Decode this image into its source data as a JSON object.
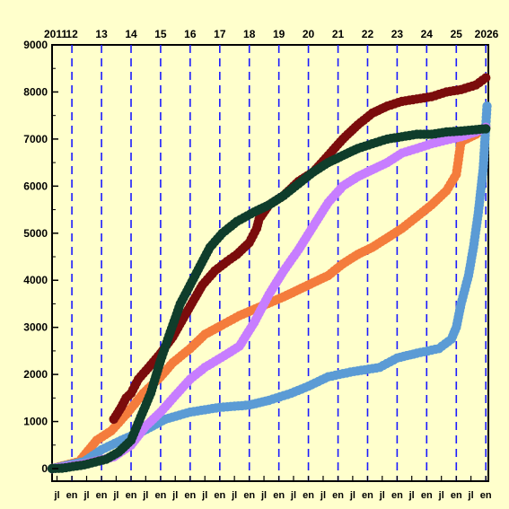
{
  "chart_data": {
    "type": "line",
    "title": "",
    "xlabel": "",
    "ylabel": "",
    "ylim": [
      0,
      9000
    ],
    "xlim": [
      "2011-05-01",
      "2026-02-01"
    ],
    "y_ticks": [
      0,
      1000,
      2000,
      3000,
      4000,
      5000,
      6000,
      7000,
      8000,
      9000
    ],
    "year_labels": [
      {
        "date": "2011-01-01",
        "label": "2011"
      },
      {
        "date": "2012-01-01",
        "label": "12"
      },
      {
        "date": "2013-01-01",
        "label": "13"
      },
      {
        "date": "2014-01-01",
        "label": "14"
      },
      {
        "date": "2015-01-01",
        "label": "15"
      },
      {
        "date": "2016-01-01",
        "label": "16"
      },
      {
        "date": "2017-01-01",
        "label": "17"
      },
      {
        "date": "2018-01-01",
        "label": "18"
      },
      {
        "date": "2019-01-01",
        "label": "19"
      },
      {
        "date": "2020-01-01",
        "label": "20"
      },
      {
        "date": "2021-01-01",
        "label": "21"
      },
      {
        "date": "2022-01-01",
        "label": "22"
      },
      {
        "date": "2023-01-01",
        "label": "23"
      },
      {
        "date": "2024-01-01",
        "label": "24"
      },
      {
        "date": "2025-01-01",
        "label": "25"
      },
      {
        "date": "2026-01-01",
        "label": "2026"
      }
    ],
    "month_ticks": [
      {
        "date": "2011-07-01",
        "label": "jl"
      },
      {
        "date": "2012-01-01",
        "label": "en"
      },
      {
        "date": "2012-07-01",
        "label": "jl"
      },
      {
        "date": "2013-01-01",
        "label": "en"
      },
      {
        "date": "2013-07-01",
        "label": "jl"
      },
      {
        "date": "2014-01-01",
        "label": "en"
      },
      {
        "date": "2014-07-01",
        "label": "jl"
      },
      {
        "date": "2015-01-01",
        "label": "en"
      },
      {
        "date": "2015-07-01",
        "label": "jl"
      },
      {
        "date": "2016-01-01",
        "label": "en"
      },
      {
        "date": "2016-07-01",
        "label": "jl"
      },
      {
        "date": "2017-01-01",
        "label": "en"
      },
      {
        "date": "2017-07-01",
        "label": "jl"
      },
      {
        "date": "2018-01-01",
        "label": "en"
      },
      {
        "date": "2018-07-01",
        "label": "jl"
      },
      {
        "date": "2019-01-01",
        "label": "en"
      },
      {
        "date": "2019-07-01",
        "label": "jl"
      },
      {
        "date": "2020-01-01",
        "label": "en"
      },
      {
        "date": "2020-07-01",
        "label": "jl"
      },
      {
        "date": "2021-01-01",
        "label": "en"
      },
      {
        "date": "2021-07-01",
        "label": "jl"
      },
      {
        "date": "2022-01-01",
        "label": "en"
      },
      {
        "date": "2022-07-01",
        "label": "jl"
      },
      {
        "date": "2023-01-01",
        "label": "en"
      },
      {
        "date": "2023-07-01",
        "label": "jl"
      },
      {
        "date": "2024-01-01",
        "label": "en"
      },
      {
        "date": "2024-07-01",
        "label": "jl"
      },
      {
        "date": "2025-01-01",
        "label": "en"
      },
      {
        "date": "2025-07-01",
        "label": "jl"
      },
      {
        "date": "2026-01-01",
        "label": "en"
      }
    ],
    "gridlines": {
      "horizontal": false,
      "vertical_at": "each year start",
      "vertical_style": "dashed blue"
    },
    "legend": "none",
    "background": "#ffffcc",
    "series": [
      {
        "color": "#f47c3c",
        "marker": "filled-circle",
        "points": [
          [
            "2011-05-01",
            0
          ],
          [
            "2012-04-01",
            150
          ],
          [
            "2012-11-01",
            600
          ],
          [
            "2013-05-01",
            800
          ],
          [
            "2013-11-01",
            1150
          ],
          [
            "2014-06-01",
            1600
          ],
          [
            "2015-01-01",
            1950
          ],
          [
            "2015-06-01",
            2250
          ],
          [
            "2016-01-01",
            2550
          ],
          [
            "2016-07-01",
            2850
          ],
          [
            "2017-02-01",
            3050
          ],
          [
            "2017-09-01",
            3250
          ],
          [
            "2018-06-01",
            3450
          ],
          [
            "2019-03-01",
            3650
          ],
          [
            "2019-09-01",
            3800
          ],
          [
            "2020-03-01",
            3950
          ],
          [
            "2020-09-01",
            4100
          ],
          [
            "2021-03-01",
            4350
          ],
          [
            "2021-09-01",
            4550
          ],
          [
            "2022-03-01",
            4700
          ],
          [
            "2022-09-01",
            4900
          ],
          [
            "2023-03-01",
            5100
          ],
          [
            "2023-09-01",
            5350
          ],
          [
            "2024-03-01",
            5600
          ],
          [
            "2024-09-01",
            5900
          ],
          [
            "2025-01-01",
            6250
          ],
          [
            "2025-03-01",
            6950
          ],
          [
            "2025-09-01",
            7100
          ],
          [
            "2026-01-01",
            7250
          ]
        ]
      },
      {
        "color": "#5b9bd5",
        "marker": "filled-circle",
        "points": [
          [
            "2011-05-01",
            0
          ],
          [
            "2012-06-01",
            150
          ],
          [
            "2013-01-01",
            400
          ],
          [
            "2013-09-01",
            600
          ],
          [
            "2014-06-01",
            800
          ],
          [
            "2015-03-01",
            1050
          ],
          [
            "2016-01-01",
            1200
          ],
          [
            "2017-01-01",
            1300
          ],
          [
            "2018-01-01",
            1350
          ],
          [
            "2018-09-01",
            1450
          ],
          [
            "2019-06-01",
            1600
          ],
          [
            "2020-01-01",
            1750
          ],
          [
            "2020-09-01",
            1950
          ],
          [
            "2021-06-01",
            2050
          ],
          [
            "2022-06-01",
            2150
          ],
          [
            "2023-01-01",
            2350
          ],
          [
            "2023-09-01",
            2450
          ],
          [
            "2024-06-01",
            2550
          ],
          [
            "2024-11-01",
            2750
          ],
          [
            "2025-01-01",
            3000
          ],
          [
            "2025-03-01",
            3500
          ],
          [
            "2025-06-01",
            4100
          ],
          [
            "2025-08-01",
            4700
          ],
          [
            "2025-10-01",
            5450
          ],
          [
            "2025-12-01",
            6400
          ],
          [
            "2026-01-01",
            7300
          ],
          [
            "2026-01-15",
            7700
          ]
        ]
      },
      {
        "color": "#c77dff",
        "marker": "filled-circle",
        "points": [
          [
            "2011-05-01",
            0
          ],
          [
            "2012-06-01",
            100
          ],
          [
            "2013-06-01",
            250
          ],
          [
            "2014-01-01",
            500
          ],
          [
            "2014-07-01",
            900
          ],
          [
            "2015-01-01",
            1200
          ],
          [
            "2015-07-01",
            1550
          ],
          [
            "2016-01-01",
            1900
          ],
          [
            "2016-07-01",
            2150
          ],
          [
            "2017-03-01",
            2400
          ],
          [
            "2017-09-01",
            2600
          ],
          [
            "2018-03-01",
            3100
          ],
          [
            "2018-09-01",
            3700
          ],
          [
            "2019-03-01",
            4200
          ],
          [
            "2019-09-01",
            4650
          ],
          [
            "2020-03-01",
            5150
          ],
          [
            "2020-09-01",
            5650
          ],
          [
            "2021-03-01",
            6000
          ],
          [
            "2021-09-01",
            6200
          ],
          [
            "2022-03-01",
            6350
          ],
          [
            "2022-09-01",
            6500
          ],
          [
            "2023-03-01",
            6700
          ],
          [
            "2023-09-01",
            6800
          ],
          [
            "2024-03-01",
            6900
          ],
          [
            "2024-09-01",
            6980
          ],
          [
            "2025-03-01",
            7050
          ],
          [
            "2025-09-01",
            7150
          ],
          [
            "2026-01-01",
            7250
          ]
        ]
      },
      {
        "color": "#7b0c0c",
        "marker": "filled-circle",
        "points": [
          [
            "2013-06-01",
            1050
          ],
          [
            "2013-09-01",
            1300
          ],
          [
            "2013-11-01",
            1500
          ],
          [
            "2014-01-01",
            1600
          ],
          [
            "2014-04-01",
            1900
          ],
          [
            "2014-09-01",
            2200
          ],
          [
            "2015-01-01",
            2450
          ],
          [
            "2015-06-01",
            2800
          ],
          [
            "2016-01-01",
            3450
          ],
          [
            "2016-06-01",
            3900
          ],
          [
            "2016-11-01",
            4200
          ],
          [
            "2017-04-01",
            4400
          ],
          [
            "2017-08-01",
            4550
          ],
          [
            "2018-01-01",
            4800
          ],
          [
            "2018-04-01",
            5100
          ],
          [
            "2018-05-01",
            5300
          ],
          [
            "2018-09-01",
            5600
          ],
          [
            "2019-03-01",
            5800
          ],
          [
            "2019-09-01",
            6100
          ],
          [
            "2020-03-01",
            6300
          ],
          [
            "2020-09-01",
            6650
          ],
          [
            "2021-03-01",
            7000
          ],
          [
            "2021-09-01",
            7300
          ],
          [
            "2022-03-01",
            7550
          ],
          [
            "2022-09-01",
            7700
          ],
          [
            "2023-03-01",
            7800
          ],
          [
            "2023-09-01",
            7850
          ],
          [
            "2024-03-01",
            7900
          ],
          [
            "2024-09-01",
            8000
          ],
          [
            "2025-03-01",
            8050
          ],
          [
            "2025-09-01",
            8150
          ],
          [
            "2026-01-01",
            8300
          ]
        ]
      },
      {
        "color": "#0f3d2b",
        "marker": "filled-circle",
        "points": [
          [
            "2011-05-01",
            0
          ],
          [
            "2011-09-01",
            10
          ],
          [
            "2012-06-01",
            80
          ],
          [
            "2013-03-01",
            200
          ],
          [
            "2013-08-01",
            350
          ],
          [
            "2014-01-01",
            600
          ],
          [
            "2014-05-01",
            1100
          ],
          [
            "2014-09-01",
            1600
          ],
          [
            "2015-01-01",
            2300
          ],
          [
            "2015-05-01",
            2900
          ],
          [
            "2015-09-01",
            3500
          ],
          [
            "2016-01-01",
            3900
          ],
          [
            "2016-05-01",
            4300
          ],
          [
            "2016-09-01",
            4700
          ],
          [
            "2017-02-01",
            5000
          ],
          [
            "2017-08-01",
            5250
          ],
          [
            "2018-03-01",
            5450
          ],
          [
            "2018-09-01",
            5600
          ],
          [
            "2019-03-01",
            5800
          ],
          [
            "2019-09-01",
            6050
          ],
          [
            "2020-03-01",
            6300
          ],
          [
            "2020-09-01",
            6500
          ],
          [
            "2021-03-01",
            6650
          ],
          [
            "2021-09-01",
            6800
          ],
          [
            "2022-03-01",
            6900
          ],
          [
            "2022-09-01",
            7000
          ],
          [
            "2023-03-01",
            7050
          ],
          [
            "2023-09-01",
            7100
          ],
          [
            "2024-03-01",
            7100
          ],
          [
            "2024-09-01",
            7150
          ],
          [
            "2025-03-01",
            7170
          ],
          [
            "2025-09-01",
            7200
          ],
          [
            "2026-01-01",
            7220
          ]
        ]
      }
    ]
  }
}
